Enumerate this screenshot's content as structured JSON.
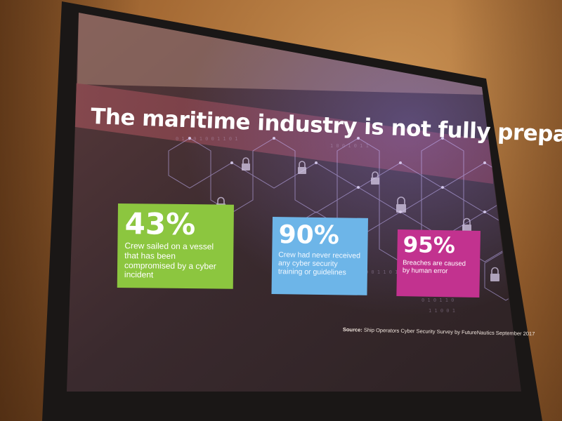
{
  "slide": {
    "headline": "The maritime industry is not fully prepared",
    "stats": [
      {
        "value": "43%",
        "description": "Crew sailed on a vessel that has been compromised by a cyber incident",
        "color": "#8cc63f"
      },
      {
        "value": "90%",
        "description": "Crew had never received any cyber security training or guidelines",
        "color": "#6db5e8"
      },
      {
        "value": "95%",
        "description": "Breaches are caused by human error",
        "color": "#c2328f"
      }
    ],
    "source_label": "Source:",
    "source_text": "Ship Operators Cyber Security Survey by FutureNautics September 2017"
  },
  "colors": {
    "wall": "#a56a34",
    "screen_frame": "#1a1716",
    "slide_background": "#3b2a2c",
    "headline_band": "#7a3b45",
    "network_accent": "#b48cff"
  },
  "icons": [
    "padlock-icon",
    "hexagon-network-graphic"
  ]
}
